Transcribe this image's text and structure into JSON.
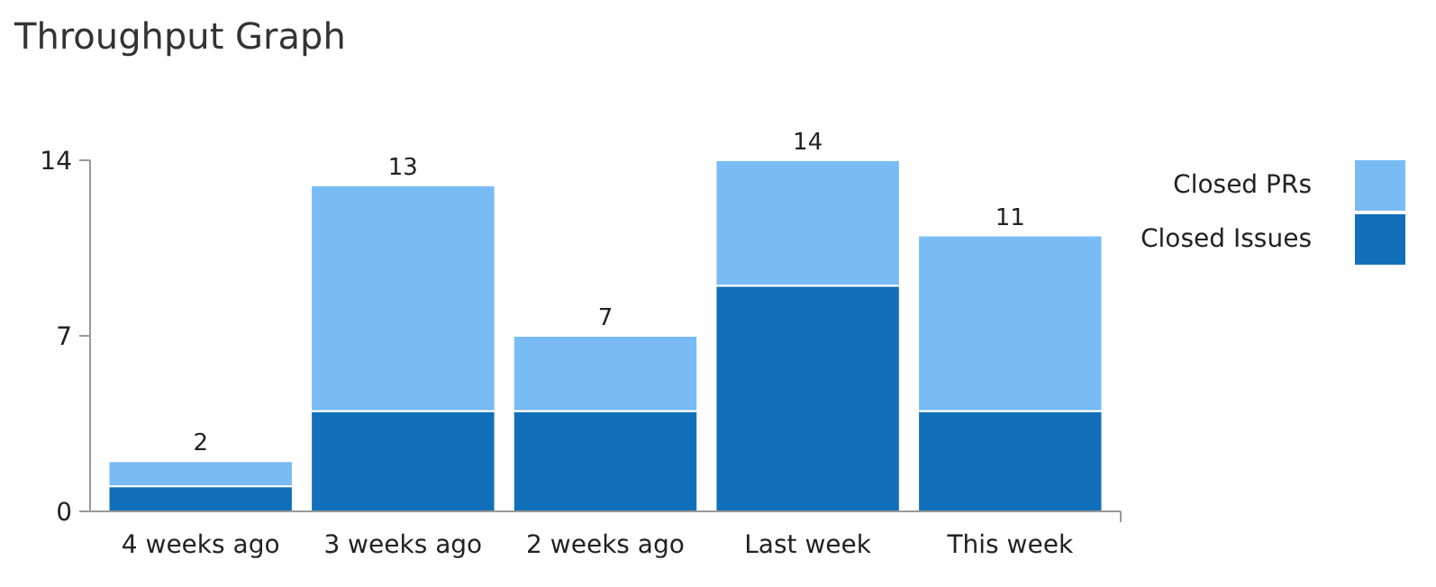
{
  "chart_data": {
    "type": "bar",
    "title": "Throughput Graph",
    "stacked": true,
    "categories": [
      "4 weeks ago",
      "3 weeks ago",
      "2 weeks ago",
      "Last week",
      "This week"
    ],
    "series": [
      {
        "name": "Closed Issues",
        "color": "#1170b9",
        "values": [
          1,
          4,
          4,
          9,
          4
        ]
      },
      {
        "name": "Closed PRs",
        "color": "#78bbf5",
        "values": [
          1,
          9,
          3,
          5,
          7
        ]
      }
    ],
    "totals": [
      "2",
      "13",
      "7",
      "14",
      "11"
    ],
    "ylim": [
      0,
      14
    ],
    "yticks": [
      0,
      7,
      14
    ],
    "grid": false,
    "legend": "top right"
  }
}
